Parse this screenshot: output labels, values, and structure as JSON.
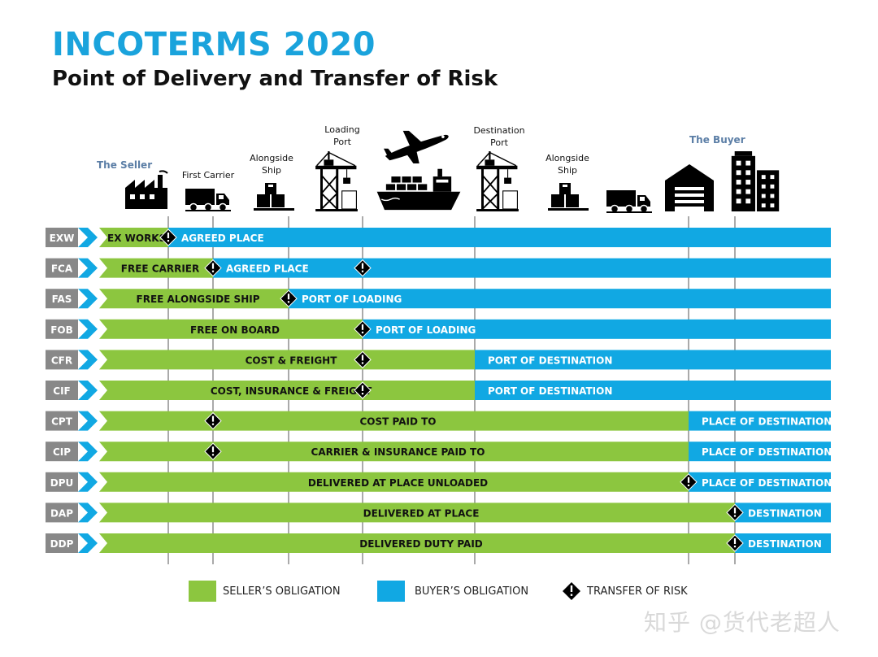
{
  "header": {
    "title": "INCOTERMS 2020",
    "subtitle": "Point of Delivery and Transfer of Risk"
  },
  "parties": {
    "seller": "The Seller",
    "buyer": "The Buyer"
  },
  "stages": [
    {
      "id": "seller",
      "label": ""
    },
    {
      "id": "first-carrier",
      "label": "First Carrier"
    },
    {
      "id": "alongside-ship-origin",
      "label": "Alongside\nShip"
    },
    {
      "id": "loading-port",
      "label": "Loading\nPort"
    },
    {
      "id": "vessel",
      "label": ""
    },
    {
      "id": "destination-port",
      "label": "Destination\nPort"
    },
    {
      "id": "alongside-ship-destination",
      "label": "Alongside\nShip"
    },
    {
      "id": "inland-truck",
      "label": ""
    },
    {
      "id": "warehouse",
      "label": ""
    },
    {
      "id": "buyer",
      "label": ""
    }
  ],
  "colors": {
    "seller": "#8cc63f",
    "buyer": "#11a8e3",
    "risk": "#000000",
    "title": "#1aa3dc",
    "gridline": "#aaaaaa"
  },
  "terms": [
    {
      "code": "EXW",
      "seller_label": "EX WORKS",
      "buyer_label": "AGREED PLACE",
      "seller_end": 1,
      "risk_at": [
        1
      ]
    },
    {
      "code": "FCA",
      "seller_label": "FREE CARRIER",
      "buyer_label": "AGREED PLACE",
      "seller_end": 2,
      "risk_at": [
        2,
        4
      ]
    },
    {
      "code": "FAS",
      "seller_label": "FREE ALONGSIDE SHIP",
      "buyer_label": "PORT OF LOADING",
      "seller_end": 3,
      "risk_at": [
        3
      ]
    },
    {
      "code": "FOB",
      "seller_label": "FREE  ON BOARD",
      "buyer_label": "PORT OF LOADING",
      "seller_end": 4,
      "risk_at": [
        4
      ]
    },
    {
      "code": "CFR",
      "seller_label": "COST & FREIGHT",
      "buyer_label": "PORT OF DESTINATION",
      "seller_end": 5,
      "risk_at": [
        4
      ]
    },
    {
      "code": "CIF",
      "seller_label": "COST, INSURANCE & FREIGHT",
      "buyer_label": "PORT OF DESTINATION",
      "seller_end": 5,
      "risk_at": [
        4
      ]
    },
    {
      "code": "CPT",
      "seller_label": "COST PAID TO",
      "buyer_label": "PLACE OF DESTINATION",
      "seller_end": 8,
      "risk_at": [
        2
      ]
    },
    {
      "code": "CIP",
      "seller_label": "CARRIER & INSURANCE PAID TO",
      "buyer_label": "PLACE OF DESTINATION",
      "seller_end": 8,
      "risk_at": [
        2
      ]
    },
    {
      "code": "DPU",
      "seller_label": "DELIVERED AT PLACE UNLOADED",
      "buyer_label": "PLACE OF DESTINATION",
      "seller_end": 8,
      "risk_at": [
        8
      ]
    },
    {
      "code": "DAP",
      "seller_label": "DELIVERED AT PLACE",
      "buyer_label": "DESTINATION",
      "seller_end": 9,
      "risk_at": [
        9
      ]
    },
    {
      "code": "DDP",
      "seller_label": "DELIVERED DUTY PAID",
      "buyer_label": "DESTINATION",
      "seller_end": 9,
      "risk_at": [
        9
      ]
    }
  ],
  "legend": {
    "seller": "SELLER’S OBLIGATION",
    "buyer": "BUYER’S OBLIGATION",
    "risk": "TRANSFER OF RISK"
  },
  "watermark": "知乎 @货代老超人"
}
